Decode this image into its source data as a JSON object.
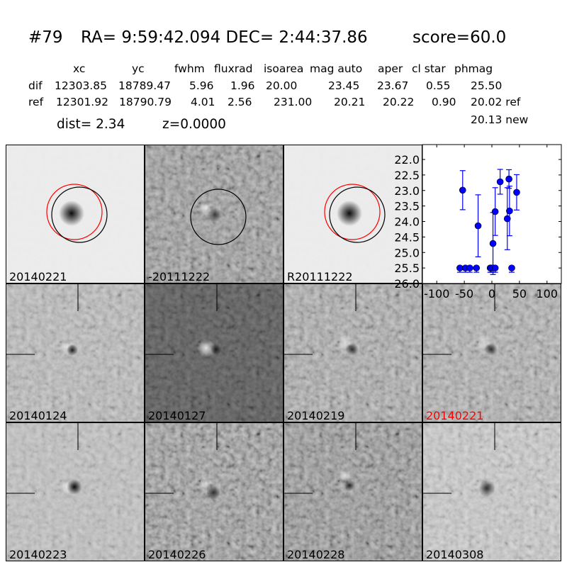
{
  "header": {
    "id": "#79",
    "coords": "RA= 9:59:42.094 DEC= 2:44:37.86",
    "score": "score=60.0"
  },
  "table": {
    "headers": [
      "xc",
      "yc",
      "fwhm",
      "fluxrad",
      "isoarea",
      "mag auto",
      "aper",
      "cl star",
      "phmag"
    ],
    "rows": [
      {
        "label": "dif",
        "values": [
          "12303.85",
          "18789.47",
          "5.96",
          "1.96",
          "20.00",
          "23.45",
          "23.67",
          "0.55",
          "25.50"
        ]
      },
      {
        "label": "ref",
        "values": [
          "12301.92",
          "18790.79",
          "4.01",
          "2.56",
          "231.00",
          "20.21",
          "20.22",
          "0.90",
          "20.02 ref"
        ]
      }
    ],
    "extra": "20.13 new"
  },
  "dist": "dist=  2.34",
  "z": "z=0.0000",
  "panels": [
    {
      "label": "20140221"
    },
    {
      "label": "-20111222"
    },
    {
      "label": "R20111222"
    },
    {
      "label": "20140124"
    },
    {
      "label": "20140127"
    },
    {
      "label": "20140219"
    },
    {
      "label": "20140221",
      "highlight": true
    },
    {
      "label": "20140223"
    },
    {
      "label": "20140226"
    },
    {
      "label": "20140228"
    },
    {
      "label": "20140308"
    }
  ],
  "colors": {
    "highlight": "#ff0000",
    "series": "#0000ff",
    "circle_new": "#ff0000",
    "circle_ref": "#000000"
  },
  "chart_data": {
    "type": "scatter",
    "title": "",
    "xlabel": "",
    "ylabel": "",
    "xlim": [
      -126,
      126
    ],
    "ylim": [
      26.0,
      21.52
    ],
    "y_inverted": true,
    "xticks": [
      "-100",
      "-50",
      "0",
      "50",
      "100"
    ],
    "yticks": [
      "22.0",
      "22.5",
      "23.0",
      "23.5",
      "24.0",
      "24.5",
      "25.0",
      "25.5",
      "26.0"
    ],
    "grid": false,
    "detections": [
      {
        "x": -53,
        "y": 22.99,
        "err": 0.63
      },
      {
        "x": -25,
        "y": 24.14,
        "err": 1.0
      },
      {
        "x": 2,
        "y": 24.71,
        "err": 1.0
      },
      {
        "x": 6,
        "y": 23.68,
        "err": 0.77
      },
      {
        "x": 15,
        "y": 22.72,
        "err": 0.4
      },
      {
        "x": 28,
        "y": 23.91,
        "err": 1.0
      },
      {
        "x": 31,
        "y": 22.63,
        "err": 0.3
      },
      {
        "x": 32,
        "y": 23.66,
        "err": 0.8
      },
      {
        "x": 45,
        "y": 23.06,
        "err": 0.57
      }
    ],
    "upper_limits": [
      {
        "x": -58,
        "y": 25.5
      },
      {
        "x": -48,
        "y": 25.5
      },
      {
        "x": -40,
        "y": 25.5
      },
      {
        "x": -28,
        "y": 25.5
      },
      {
        "x": -3,
        "y": 25.5
      },
      {
        "x": -1,
        "y": 25.5
      },
      {
        "x": 2,
        "y": 25.5
      },
      {
        "x": 6,
        "y": 25.5
      },
      {
        "x": 36,
        "y": 25.5
      }
    ]
  }
}
